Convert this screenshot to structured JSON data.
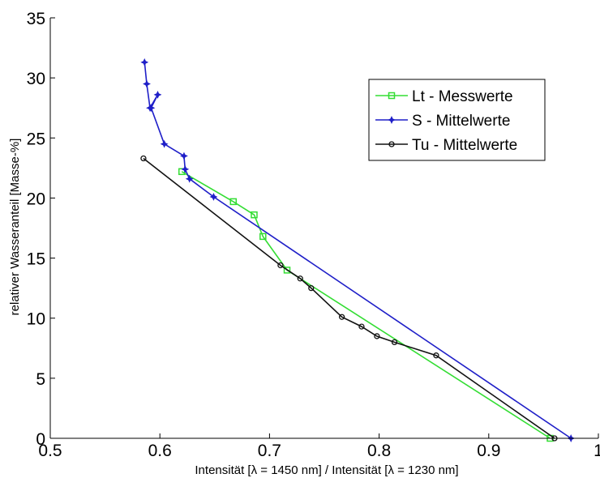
{
  "chart_data": {
    "type": "line",
    "xlabel": "Intensität [λ = 1450 nm] / Intensität [λ = 1230 nm]",
    "ylabel": "relativer Wasseranteil [Masse-%]",
    "xlim": [
      0.5,
      1.0
    ],
    "ylim": [
      0,
      35
    ],
    "xticks": [
      0.5,
      0.6,
      0.7,
      0.8,
      0.9,
      1
    ],
    "xtick_labels": [
      "0.5",
      "0.6",
      "0.7",
      "0.8",
      "0.9",
      "1"
    ],
    "yticks": [
      0,
      5,
      10,
      15,
      20,
      25,
      30,
      35
    ],
    "ytick_labels": [
      "0",
      "5",
      "10",
      "15",
      "20",
      "25",
      "30",
      "35"
    ],
    "grid": false,
    "legend_position": "top-right",
    "series": [
      {
        "name": "Lt - Messwerte",
        "color": "#33dd33",
        "marker": "square",
        "x": [
          0.62,
          0.667,
          0.686,
          0.694,
          0.716,
          0.956
        ],
        "y": [
          22.2,
          19.7,
          18.6,
          16.8,
          14.0,
          0.0
        ]
      },
      {
        "name": "S - Mittelwerte",
        "color": "#1f1fc8",
        "marker": "star",
        "x": [
          0.586,
          0.588,
          0.591,
          0.598,
          0.592,
          0.604,
          0.622,
          0.623,
          0.627,
          0.649,
          0.975
        ],
        "y": [
          31.3,
          29.5,
          27.5,
          28.6,
          27.5,
          24.5,
          23.5,
          22.4,
          21.6,
          20.1,
          0.0
        ]
      },
      {
        "name": "Tu - Mittelwerte",
        "color": "#111111",
        "marker": "circle",
        "x": [
          0.585,
          0.71,
          0.728,
          0.738,
          0.766,
          0.784,
          0.798,
          0.814,
          0.852,
          0.96
        ],
        "y": [
          23.3,
          14.4,
          13.3,
          12.5,
          10.1,
          9.3,
          8.5,
          8.0,
          6.9,
          0.0
        ]
      }
    ]
  }
}
